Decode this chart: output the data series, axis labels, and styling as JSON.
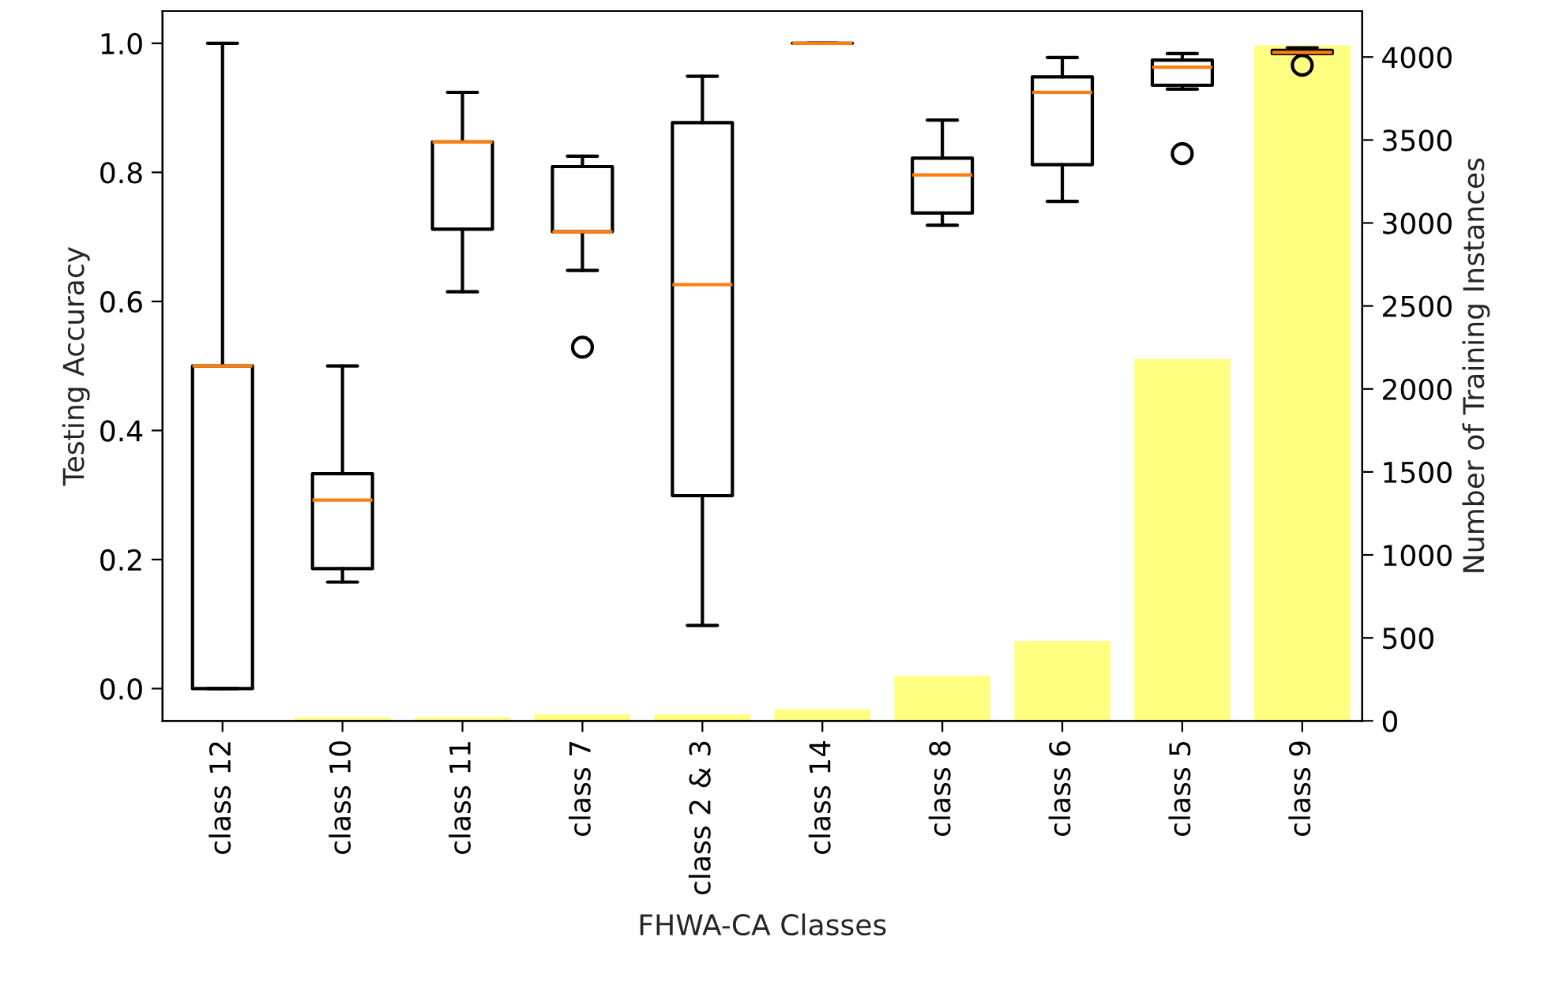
{
  "chart_data": {
    "type": "box",
    "xlabel": "FHWA-CA Classes",
    "ylabel": "Testing Accuracy",
    "y2label": "Number of Training Instances",
    "categories": [
      "class 12",
      "class 10",
      "class 11",
      "class 7",
      "class 2 & 3",
      "class 14",
      "class 8",
      "class 6",
      "class 5",
      "class 9"
    ],
    "ylim": [
      -0.05,
      1.05
    ],
    "yticks": [
      {
        "value": 0,
        "label": "0.0"
      },
      {
        "value": 0.2,
        "label": "0.2"
      },
      {
        "value": 0.4,
        "label": "0.4"
      },
      {
        "value": 0.6,
        "label": "0.6"
      },
      {
        "value": 0.8,
        "label": "0.8"
      },
      {
        "value": 1,
        "label": "1.0"
      }
    ],
    "y2lim": [
      0,
      4277
    ],
    "y2ticks": [
      0,
      500,
      1000,
      1500,
      2000,
      2500,
      3000,
      3500,
      4000
    ],
    "grid": false,
    "legend": false,
    "series": [
      {
        "type": "bar",
        "axis": "y2",
        "color": "#ffff80",
        "values": [
          0,
          20,
          20,
          40,
          40,
          70,
          270,
          480,
          2180,
          4070
        ]
      },
      {
        "color": "#000000",
        "boxes": [
          {
            "low": 0,
            "q1": 0,
            "median": 0.5,
            "q3": 0.5,
            "high": 1.0
          },
          {
            "low": 0.165,
            "q1": 0.186,
            "median": 0.292,
            "q3": 0.333,
            "high": 0.5
          },
          {
            "low": 0.615,
            "q1": 0.712,
            "median": 0.847,
            "q3": 0.847,
            "high": 0.924
          },
          {
            "low": 0.648,
            "q1": 0.708,
            "median": 0.708,
            "q3": 0.809,
            "high": 0.825,
            "outliers": [
              0.529
            ]
          },
          {
            "low": 0.098,
            "q1": 0.299,
            "median": 0.626,
            "q3": 0.877,
            "high": 0.949
          },
          {
            "low": 1.0,
            "q1": 1.0,
            "median": 1.0,
            "q3": 1.0,
            "high": 1.0
          },
          {
            "low": 0.718,
            "q1": 0.737,
            "median": 0.796,
            "q3": 0.822,
            "high": 0.881
          },
          {
            "low": 0.755,
            "q1": 0.812,
            "median": 0.924,
            "q3": 0.948,
            "high": 0.978
          },
          {
            "low": 0.929,
            "q1": 0.935,
            "median": 0.963,
            "q3": 0.974,
            "high": 0.984,
            "outliers": [
              0.829
            ]
          },
          {
            "low": 0.984,
            "q1": 0.984,
            "median": 0.986,
            "q3": 0.989,
            "high": 0.993,
            "outliers": [
              0.966
            ]
          }
        ]
      }
    ]
  }
}
